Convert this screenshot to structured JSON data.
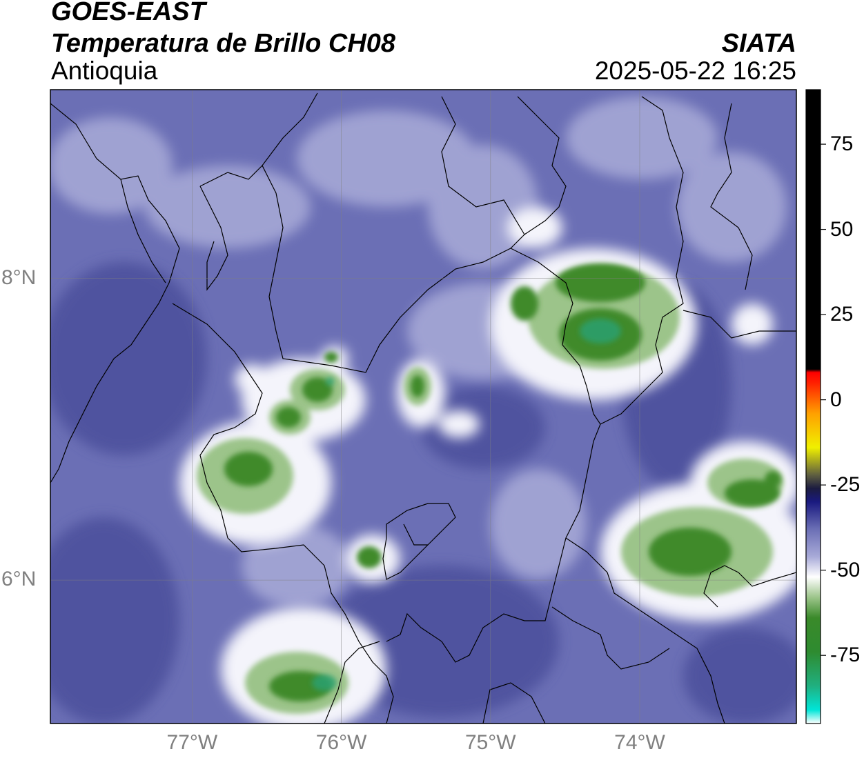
{
  "header": {
    "satellite": "GOES-EAST",
    "product": "Temperatura de Brillo CH08",
    "region": "Antioquia",
    "organization": "SIATA",
    "timestamp": "2025-05-22 16:25"
  },
  "map": {
    "lat_range": [
      5.05,
      9.25
    ],
    "lon_range": [
      -77.95,
      -72.95
    ],
    "gridlines": true,
    "lat_ticks": [
      {
        "value": 8,
        "label": "8°N"
      },
      {
        "value": 6,
        "label": "6°N"
      }
    ],
    "lon_ticks": [
      {
        "value": -77,
        "label": "77°W"
      },
      {
        "value": -76,
        "label": "76°W"
      },
      {
        "value": -75,
        "label": "75°W"
      },
      {
        "value": -74,
        "label": "74°W"
      }
    ],
    "background_color": "#6b6fb5",
    "cold_cloud_color": "#3f8a2c"
  },
  "colorbar": {
    "range": [
      -95,
      91
    ],
    "ticks": [
      {
        "value": 75,
        "label": "75"
      },
      {
        "value": 50,
        "label": "50"
      },
      {
        "value": 25,
        "label": "25"
      },
      {
        "value": 0,
        "label": "0"
      },
      {
        "value": -25,
        "label": "-25"
      },
      {
        "value": -50,
        "label": "-50"
      },
      {
        "value": -75,
        "label": "-75"
      }
    ],
    "stops": [
      {
        "value": -95,
        "color": "#ffffff"
      },
      {
        "value": -91,
        "color": "#00e5d8"
      },
      {
        "value": -84,
        "color": "#20b080"
      },
      {
        "value": -74,
        "color": "#2e8b30"
      },
      {
        "value": -64,
        "color": "#3a8a2a"
      },
      {
        "value": -58,
        "color": "#9cc48a"
      },
      {
        "value": -52,
        "color": "#ffffff"
      },
      {
        "value": -46,
        "color": "#a8aad8"
      },
      {
        "value": -38,
        "color": "#6b6fb5"
      },
      {
        "value": -30,
        "color": "#1a1a80"
      },
      {
        "value": -26,
        "color": "#1c1c40"
      },
      {
        "value": -22,
        "color": "#606040"
      },
      {
        "value": -14,
        "color": "#f0f000"
      },
      {
        "value": -4,
        "color": "#ffa000"
      },
      {
        "value": 5,
        "color": "#ff2000"
      },
      {
        "value": 8,
        "color": "#ff0000"
      },
      {
        "value": 9,
        "color": "#000000"
      },
      {
        "value": 91,
        "color": "#000000"
      }
    ]
  }
}
